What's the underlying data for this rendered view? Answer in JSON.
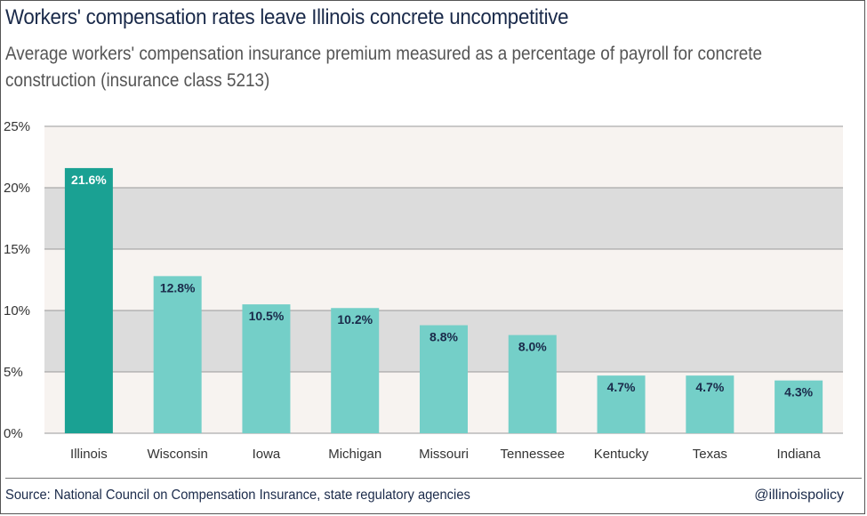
{
  "title": "Workers' compensation rates leave Illinois concrete uncompetitive",
  "subtitle": "Average workers' compensation insurance premium measured as a percentage of payroll for concrete construction (insurance class 5213)",
  "source": "Source: National Council on Compensation Insurance, state regulatory agencies",
  "handle": "@illinoispolicy",
  "colors": {
    "highlight_bar": "#1aa193",
    "bar": "#74cfc8",
    "band_dark": "#dcdcdc",
    "band_light": "#f7f3f0",
    "title": "#1a2a4a",
    "axis_text": "#333333"
  },
  "chart_data": {
    "type": "bar",
    "categories": [
      "Illinois",
      "Wisconsin",
      "Iowa",
      "Michigan",
      "Missouri",
      "Tennessee",
      "Kentucky",
      "Texas",
      "Indiana"
    ],
    "values": [
      21.6,
      12.8,
      10.5,
      10.2,
      8.8,
      8.0,
      4.7,
      4.7,
      4.3
    ],
    "value_labels": [
      "21.6%",
      "12.8%",
      "10.5%",
      "10.2%",
      "8.8%",
      "8.0%",
      "4.7%",
      "4.7%",
      "4.3%"
    ],
    "y_ticks": [
      "0%",
      "5%",
      "10%",
      "15%",
      "20%",
      "25%"
    ],
    "ylim": [
      0,
      25
    ],
    "highlight_category": "Illinois",
    "grid": true,
    "xlabel": "",
    "ylabel": ""
  }
}
